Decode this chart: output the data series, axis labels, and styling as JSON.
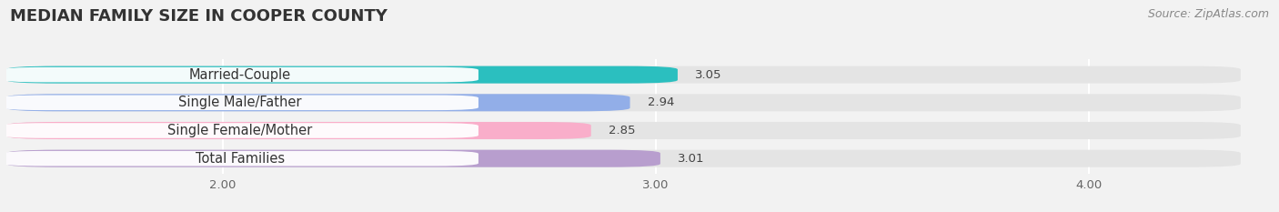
{
  "title": "MEDIAN FAMILY SIZE IN COOPER COUNTY",
  "source": "Source: ZipAtlas.com",
  "categories": [
    "Married-Couple",
    "Single Male/Father",
    "Single Female/Mother",
    "Total Families"
  ],
  "values": [
    3.05,
    2.94,
    2.85,
    3.01
  ],
  "bar_colors": [
    "#2bbfbf",
    "#92aee8",
    "#f9aeca",
    "#b89ece"
  ],
  "xlim_left": 1.5,
  "xlim_right": 4.35,
  "data_min": 1.5,
  "xticks": [
    2.0,
    3.0,
    4.0
  ],
  "xtick_labels": [
    "2.00",
    "3.00",
    "4.00"
  ],
  "bar_height": 0.62,
  "background_color": "#f2f2f2",
  "bg_bar_color": "#e4e4e4",
  "label_box_color": "#ffffff",
  "label_fontsize": 10.5,
  "value_fontsize": 9.5,
  "title_fontsize": 13,
  "source_fontsize": 9
}
